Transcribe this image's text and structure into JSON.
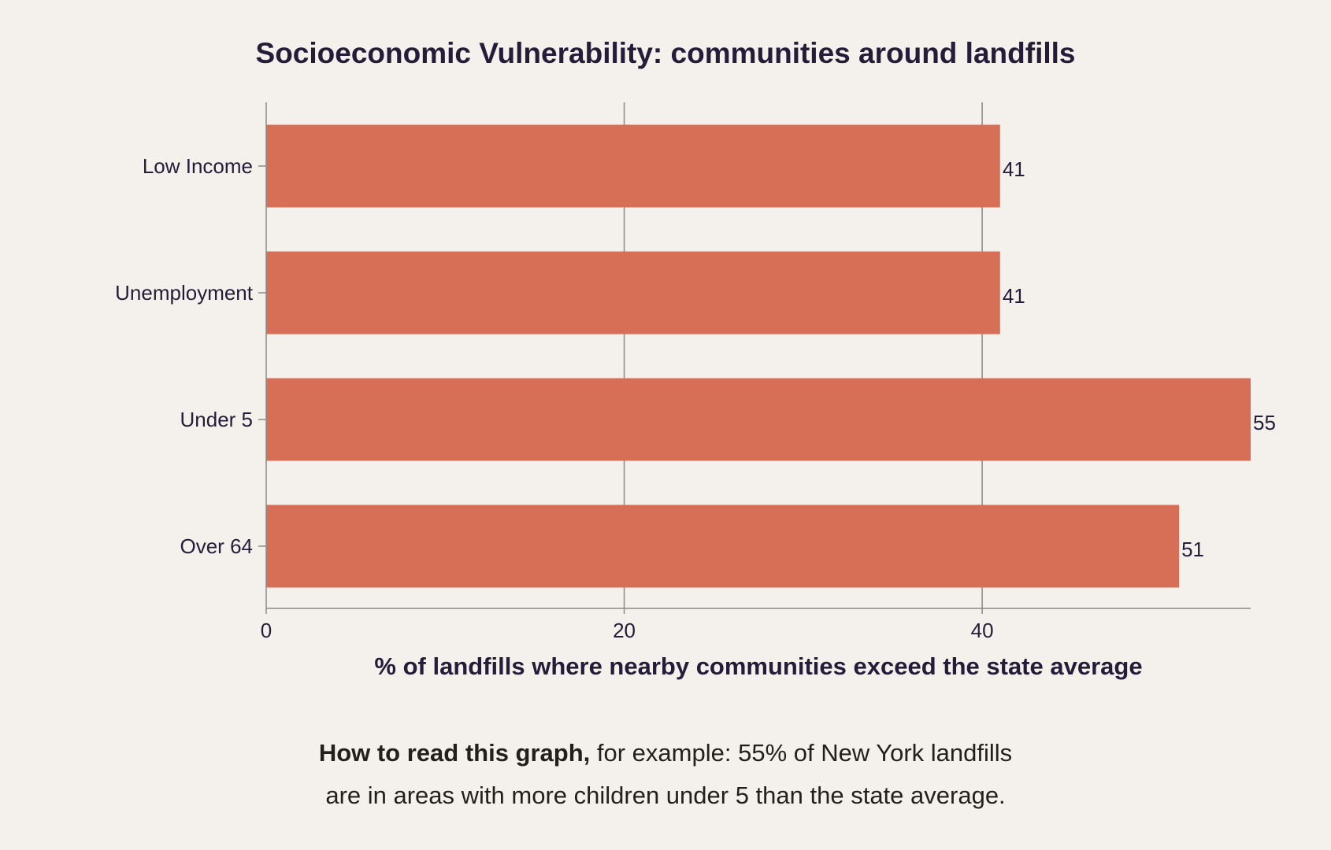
{
  "chart_data": {
    "type": "bar",
    "orientation": "horizontal",
    "title": "Socioeconomic Vulnerability: communities around landfills",
    "categories": [
      "Low Income",
      "Unemployment",
      "Under 5",
      "Over 64"
    ],
    "values": [
      41,
      41,
      55,
      51
    ],
    "data_labels": [
      "41",
      "41",
      "55",
      "51"
    ],
    "xlabel": "% of landfills where nearby communities exceed the state average",
    "ylabel": "",
    "xlim": [
      0,
      55
    ],
    "x_ticks": [
      0,
      20,
      40
    ],
    "x_tick_labels": [
      "0",
      "20",
      "40"
    ],
    "grid": true,
    "bar_color": "#d76e56"
  },
  "note": {
    "bold_text": "How to read this graph,",
    "line1_rest": " for example: 55% of New York landfills",
    "line2": "are in areas with more children under 5 than the state average."
  },
  "colors": {
    "background": "#f4f0eb",
    "text": "#241c39",
    "grid": "#8a8a8a"
  }
}
